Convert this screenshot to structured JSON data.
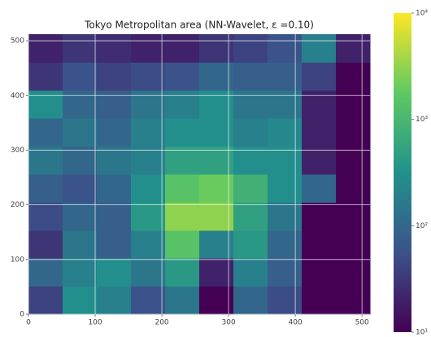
{
  "chart_data": {
    "type": "heatmap",
    "title": "Tokyo Metropolitan area (NN-Wavelet, ε =0.10)",
    "xlim": [
      0,
      512
    ],
    "ylim": [
      0,
      512
    ],
    "xticks": [
      0,
      100,
      200,
      300,
      400,
      500
    ],
    "yticks": [
      0,
      100,
      200,
      300,
      400,
      500
    ],
    "grid": true,
    "colormap": "viridis",
    "color_scale": "log",
    "clim": [
      10,
      10000
    ],
    "cticks": [
      {
        "value": 10,
        "label": "10¹"
      },
      {
        "value": 100,
        "label": "10²"
      },
      {
        "value": 1000,
        "label": "10³"
      },
      {
        "value": 10000,
        "label": "10⁴"
      }
    ],
    "z": [
      [
        40,
        300,
        200,
        60,
        150,
        10,
        100,
        50,
        10,
        10
      ],
      [
        100,
        200,
        300,
        150,
        400,
        20,
        200,
        80,
        10,
        10
      ],
      [
        30,
        150,
        80,
        200,
        1500,
        200,
        400,
        100,
        10,
        10
      ],
      [
        50,
        100,
        80,
        400,
        3000,
        3000,
        500,
        150,
        10,
        10
      ],
      [
        80,
        60,
        100,
        300,
        1500,
        2000,
        800,
        300,
        100,
        10
      ],
      [
        150,
        100,
        150,
        200,
        500,
        500,
        300,
        300,
        20,
        10
      ],
      [
        100,
        150,
        100,
        200,
        300,
        300,
        200,
        250,
        20,
        10
      ],
      [
        300,
        100,
        80,
        150,
        200,
        300,
        150,
        150,
        20,
        10
      ],
      [
        30,
        60,
        40,
        50,
        60,
        100,
        80,
        80,
        40,
        10
      ],
      [
        20,
        30,
        25,
        20,
        20,
        30,
        40,
        60,
        200,
        20
      ]
    ]
  }
}
